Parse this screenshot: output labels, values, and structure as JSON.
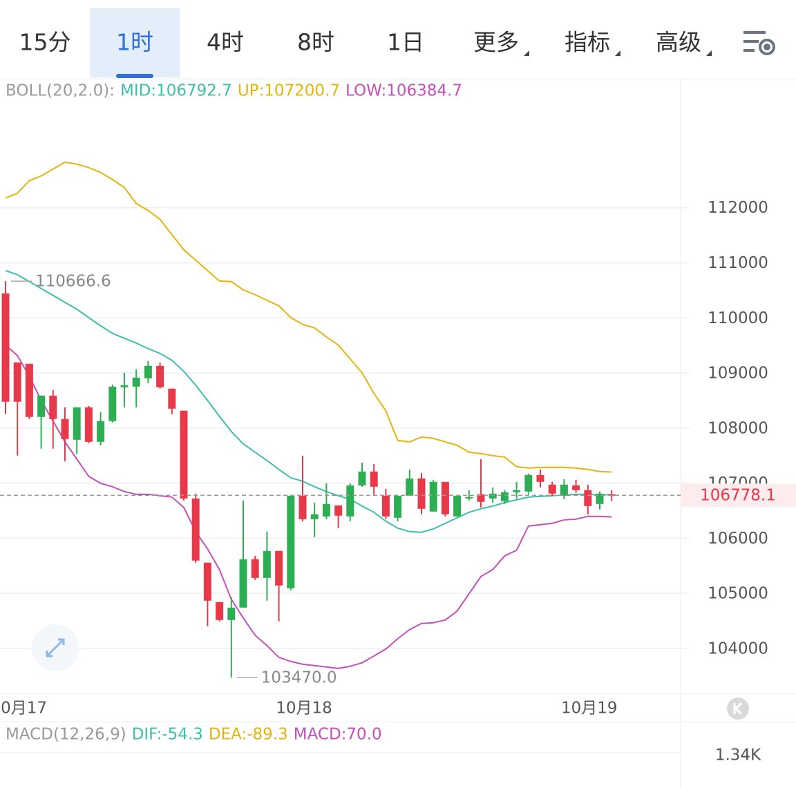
{
  "tabs": {
    "items": [
      "15分",
      "1时",
      "4时",
      "8时",
      "1日",
      "更多",
      "指标",
      "高级"
    ],
    "active": 1
  },
  "chart_data": {
    "type": "candlestick",
    "indicator_legend": [
      "BOLL(20,2.0):",
      "MID:106792.7",
      "UP:107200.7",
      "LOW:106384.7"
    ],
    "up_color": "#2dae55",
    "down_color": "#e8394b",
    "categories": [
      null,
      "10月17",
      null,
      null,
      null,
      null,
      null,
      null,
      null,
      null,
      null,
      null,
      null,
      null,
      null,
      null,
      null,
      null,
      null,
      null,
      null,
      null,
      null,
      null,
      null,
      "10月18",
      null,
      null,
      null,
      null,
      null,
      null,
      null,
      null,
      null,
      null,
      null,
      null,
      null,
      null,
      null,
      null,
      null,
      null,
      null,
      null,
      null,
      null,
      null,
      "10月19",
      null,
      null
    ],
    "open": [
      110445,
      109191,
      109166,
      108201,
      108589,
      108163,
      107787,
      108376,
      107749,
      108125,
      108740,
      108752,
      108903,
      109129,
      108715,
      108314,
      106721,
      105555,
      104840,
      104514,
      104740,
      105618,
      105279,
      105768,
      105091,
      106771,
      106345,
      106395,
      106596,
      106395,
      106959,
      107210,
      106771,
      106370,
      106771,
      107085,
      106483,
      107022,
      106395,
      106721,
      106797,
      106721,
      106671,
      106834,
      106847,
      107147,
      106972,
      106771,
      106959,
      106872,
      106621,
      106797
    ],
    "high": [
      110666.6,
      109191,
      109166,
      108589,
      108690,
      108376,
      108376,
      108401,
      108288,
      108790,
      109003,
      109066,
      109216,
      109191,
      108715,
      108314,
      106809,
      105555,
      104840,
      104928,
      106684,
      105680,
      106119,
      105768,
      106771,
      107498,
      106646,
      106997,
      106596,
      106997,
      107373,
      107348,
      106897,
      106771,
      107248,
      107185,
      107059,
      107022,
      106771,
      106872,
      107436,
      106922,
      106872,
      107022,
      107172,
      107248,
      107022,
      107072,
      107059,
      106972,
      106847,
      106872
    ],
    "low": [
      108251,
      107498,
      108163,
      107624,
      107624,
      107398,
      107524,
      107724,
      107687,
      108100,
      108376,
      108376,
      108815,
      108715,
      108251,
      106683,
      105555,
      104401,
      104489,
      103470,
      104740,
      105241,
      104865,
      104489,
      105053,
      106307,
      106019,
      106345,
      106182,
      106307,
      106934,
      106771,
      106345,
      106307,
      106771,
      106433,
      106483,
      106395,
      106395,
      106683,
      106558,
      106646,
      106621,
      106721,
      106797,
      106922,
      106771,
      106709,
      106822,
      106433,
      106521,
      106671
    ],
    "close": [
      108477,
      108477,
      108201,
      108589,
      108163,
      107800,
      108376,
      107749,
      108125,
      108752,
      108777,
      108915,
      109129,
      108740,
      108351,
      106721,
      105593,
      104865,
      104514,
      104740,
      105618,
      105279,
      105768,
      105141,
      106771,
      106345,
      106433,
      106621,
      106408,
      106959,
      107210,
      106934,
      106395,
      106771,
      107085,
      106533,
      107022,
      106433,
      106771,
      106746,
      106659,
      106809,
      106834,
      106872,
      107147,
      107022,
      106809,
      106972,
      106872,
      106583,
      106809,
      106778.1
    ],
    "series": [
      {
        "name": "UP",
        "color": "#e3b40c",
        "values": [
          112176,
          112263,
          112489,
          112577,
          112702,
          112827,
          112790,
          112727,
          112639,
          112514,
          112364,
          112075,
          111950,
          111787,
          111511,
          111235,
          111047,
          110859,
          110670,
          110658,
          110508,
          110420,
          110320,
          110219,
          110006,
          109881,
          109818,
          109655,
          109505,
          109254,
          109003,
          108627,
          108314,
          107774,
          107749,
          107837,
          107812,
          107749,
          107687,
          107561,
          107536,
          107498,
          107473,
          107298,
          107273,
          107285,
          107285,
          107285,
          107273,
          107248,
          107210,
          107200.7
        ]
      },
      {
        "name": "MID",
        "color": "#3cbfa8",
        "values": [
          110859,
          110784,
          110658,
          110533,
          110408,
          110282,
          110157,
          110006,
          109856,
          109718,
          109630,
          109542,
          109442,
          109354,
          109229,
          109028,
          108777,
          108502,
          108213,
          107937,
          107712,
          107561,
          107411,
          107248,
          107097,
          107035,
          106934,
          106846,
          106771,
          106709,
          106583,
          106470,
          106307,
          106182,
          106119,
          106107,
          106169,
          106270,
          106370,
          106470,
          106533,
          106583,
          106646,
          106696,
          106746,
          106759,
          106771,
          106784,
          106797,
          106797,
          106784,
          106792.7
        ]
      },
      {
        "name": "LOW",
        "color": "#c44fb8",
        "values": [
          109505,
          109317,
          108940,
          108502,
          108125,
          107749,
          107436,
          107122,
          106997,
          106934,
          106846,
          106796,
          106796,
          106771,
          106746,
          106558,
          106119,
          105806,
          105430,
          104890,
          104552,
          104238,
          104050,
          103837,
          103762,
          103712,
          103687,
          103662,
          103636,
          103675,
          103737,
          103862,
          103988,
          104176,
          104339,
          104452,
          104464,
          104514,
          104677,
          104991,
          105304,
          105430,
          105680,
          105781,
          106220,
          106245,
          106270,
          106332,
          106345,
          106396,
          106396,
          106384.7
        ]
      }
    ],
    "high_label": {
      "value": 110666.6,
      "label": "110666.6"
    },
    "low_label": {
      "value": 103470,
      "label": "103470.0"
    },
    "last_price": 106778.1,
    "ylim": [
      103170,
      113890
    ],
    "yticks": [
      104000,
      105000,
      106000,
      107000,
      108000,
      109000,
      110000,
      111000,
      112000
    ],
    "grid": true,
    "macd_legend": [
      "MACD(12,26,9)",
      "DIF:-54.3",
      "DEA:-89.3",
      "MACD:70.0"
    ],
    "macd_axis_label": "1.34K"
  }
}
